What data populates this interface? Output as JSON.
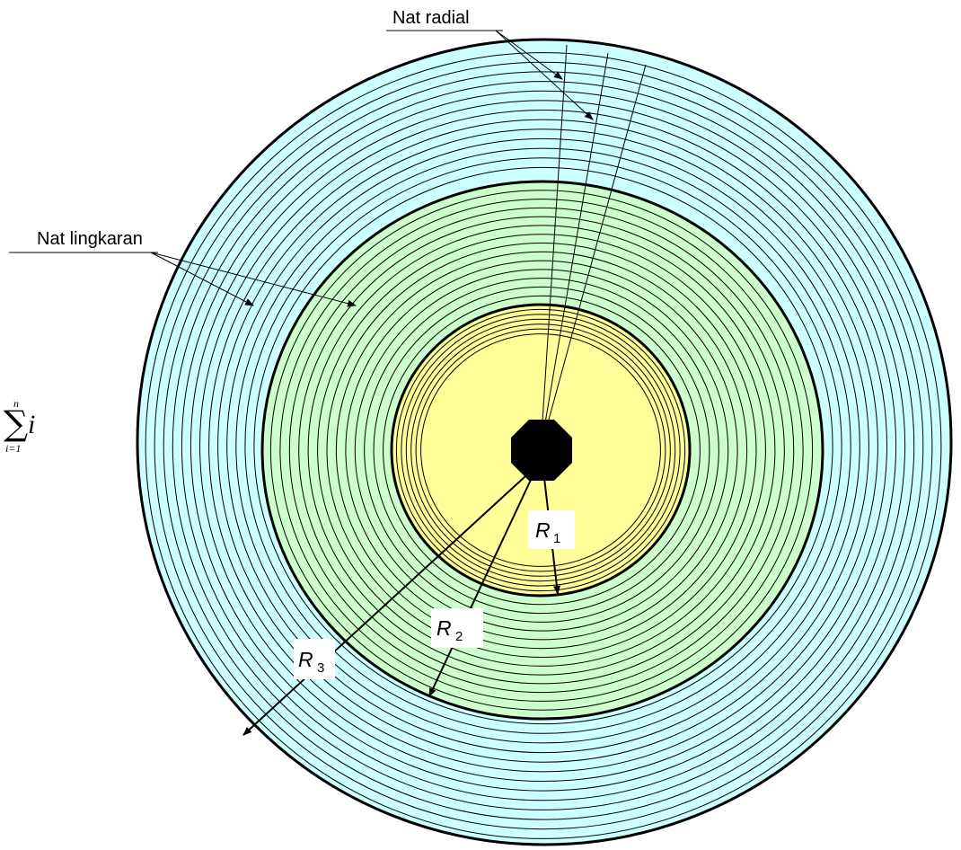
{
  "labels": {
    "radial_joint": "Nat radial",
    "circular_joint": "Nat lingkaran"
  },
  "radii": [
    {
      "symbol": "R",
      "subscript": "1"
    },
    {
      "symbol": "R",
      "subscript": "2"
    },
    {
      "symbol": "R",
      "subscript": "3"
    }
  ],
  "summation": {
    "upper": "n",
    "lower": "i=1",
    "variable": "i"
  },
  "colors": {
    "inner_zone": "#ffff99",
    "middle_zone": "#ccffcc",
    "outer_zone": "#ccffff",
    "line": "#000000",
    "hub": "#000000"
  }
}
